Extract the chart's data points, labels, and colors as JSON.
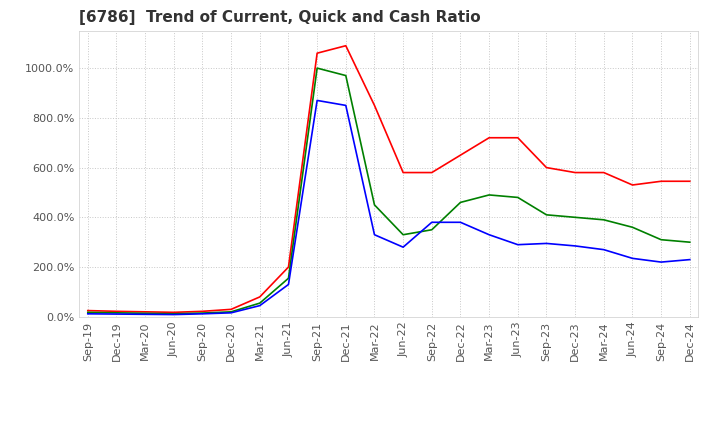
{
  "title": "[6786]  Trend of Current, Quick and Cash Ratio",
  "x_labels": [
    "Sep-19",
    "Dec-19",
    "Mar-20",
    "Jun-20",
    "Sep-20",
    "Dec-20",
    "Mar-21",
    "Jun-21",
    "Sep-21",
    "Dec-21",
    "Mar-22",
    "Jun-22",
    "Sep-22",
    "Dec-22",
    "Mar-23",
    "Jun-23",
    "Sep-23",
    "Dec-23",
    "Mar-24",
    "Jun-24",
    "Sep-24",
    "Dec-24"
  ],
  "current_ratio": [
    25,
    22,
    20,
    18,
    22,
    30,
    80,
    200,
    1060,
    1090,
    850,
    580,
    580,
    650,
    720,
    720,
    600,
    580,
    580,
    530,
    545,
    545
  ],
  "quick_ratio": [
    18,
    16,
    14,
    12,
    15,
    20,
    55,
    155,
    1000,
    970,
    450,
    330,
    350,
    460,
    490,
    480,
    410,
    400,
    390,
    360,
    310,
    300
  ],
  "cash_ratio": [
    12,
    11,
    10,
    9,
    12,
    16,
    45,
    130,
    870,
    850,
    330,
    280,
    380,
    380,
    330,
    290,
    295,
    285,
    270,
    235,
    220,
    230
  ],
  "current_color": "#FF0000",
  "quick_color": "#008000",
  "cash_color": "#0000FF",
  "ylim": [
    0,
    1150
  ],
  "yticks": [
    0,
    200,
    400,
    600,
    800,
    1000
  ],
  "ytick_labels": [
    "0.0%",
    "200.0%",
    "400.0%",
    "600.0%",
    "800.0%",
    "1000.0%"
  ],
  "background_color": "#ffffff",
  "grid_color": "#c8c8c8",
  "title_fontsize": 11,
  "axis_fontsize": 8,
  "legend_fontsize": 9
}
